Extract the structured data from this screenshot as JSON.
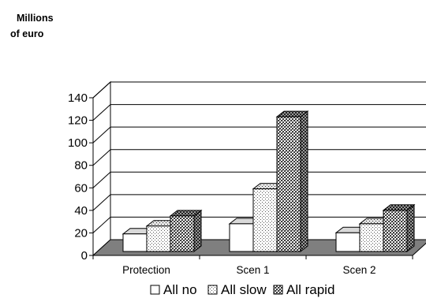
{
  "chart_data": {
    "type": "bar",
    "ylabel_line1": "Millions",
    "ylabel_line2": "of euro",
    "xlabel": "",
    "ylim": [
      0,
      140
    ],
    "ytick_step": 20,
    "grid": true,
    "legend_position": "bottom",
    "categories": [
      "Protection",
      "Scen 1",
      "Scen 2"
    ],
    "series": [
      {
        "name": "All no",
        "values": [
          17,
          26,
          18
        ],
        "pattern": "blank"
      },
      {
        "name": "All slow",
        "values": [
          24,
          57,
          26
        ],
        "pattern": "dots"
      },
      {
        "name": "All rapid",
        "values": [
          33,
          121,
          38
        ],
        "pattern": "checker"
      }
    ]
  }
}
